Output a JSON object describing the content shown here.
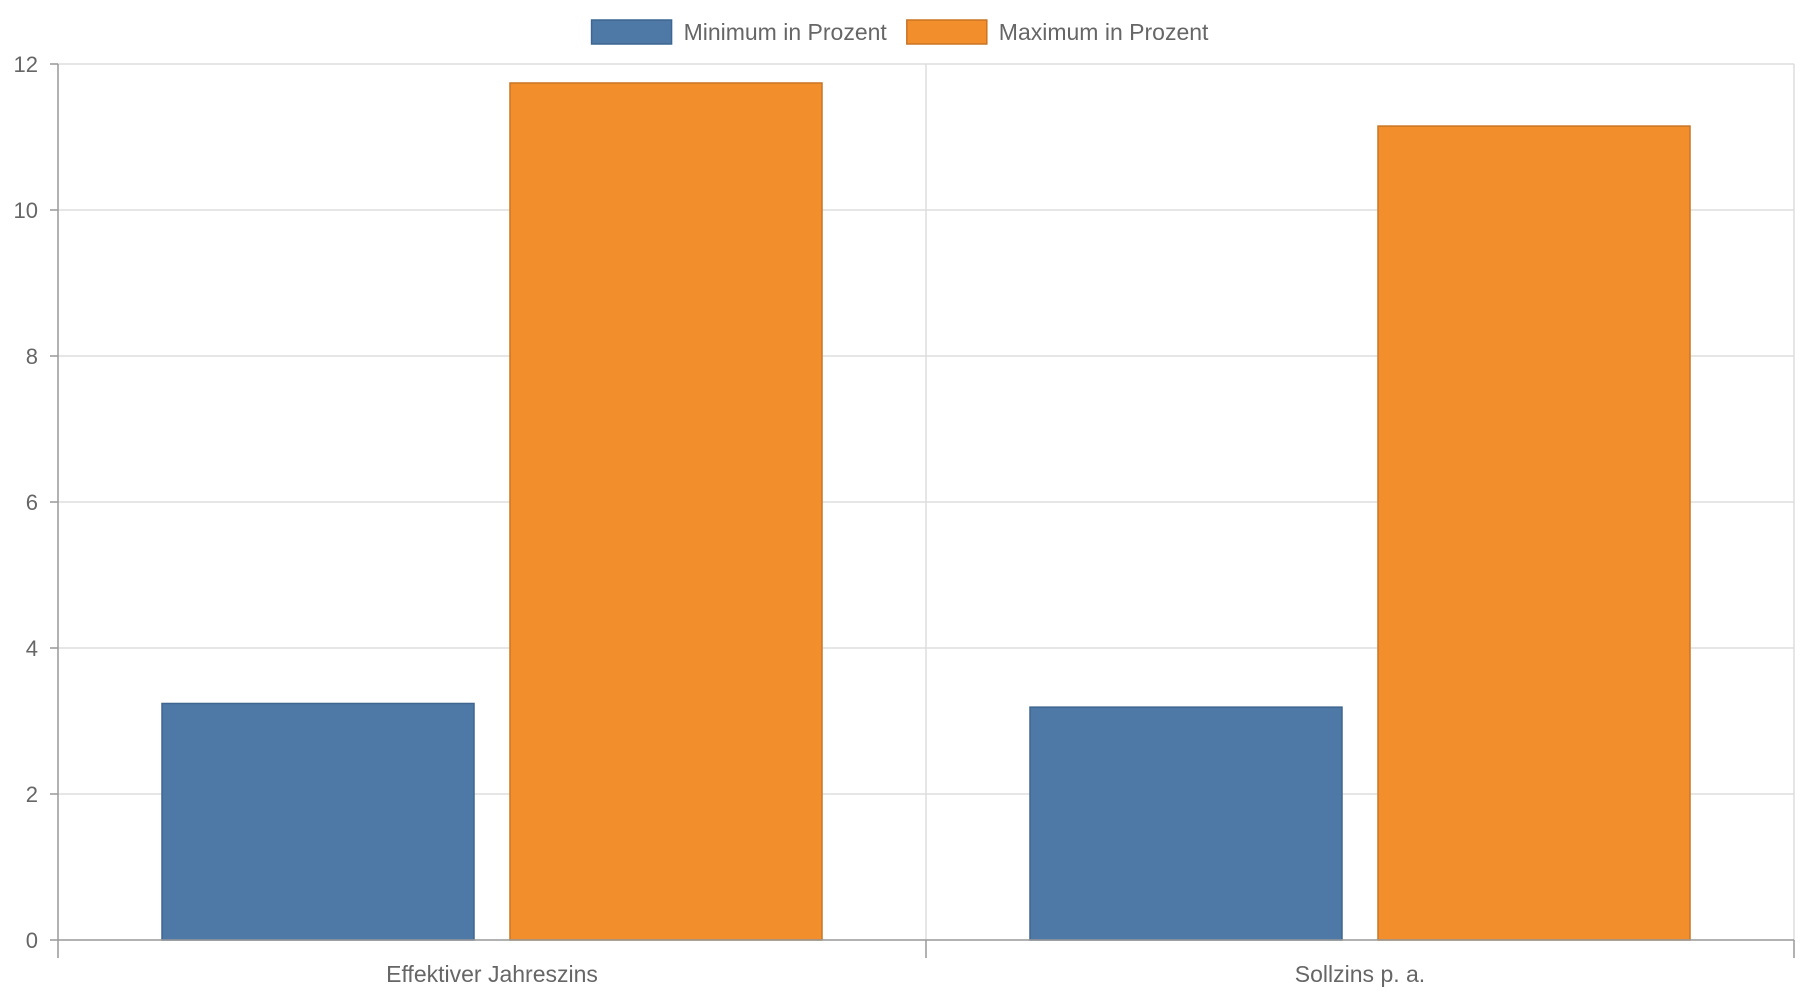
{
  "chart_data": {
    "type": "bar",
    "title": "",
    "xlabel": "",
    "ylabel": "",
    "categories": [
      "Effektiver Jahreszins",
      "Sollzins p. a."
    ],
    "series": [
      {
        "name": "Minimum in Prozent",
        "values": [
          3.24,
          3.19
        ],
        "color": "#4e79a7",
        "stroke": "#3f6690"
      },
      {
        "name": "Maximum in Prozent",
        "values": [
          11.74,
          11.15
        ],
        "color": "#f28e2b",
        "stroke": "#c97524"
      }
    ],
    "ylim": [
      0,
      12
    ],
    "yticks": [
      0,
      2,
      4,
      6,
      8,
      10,
      12
    ],
    "grid": true,
    "legend": "top-center"
  }
}
